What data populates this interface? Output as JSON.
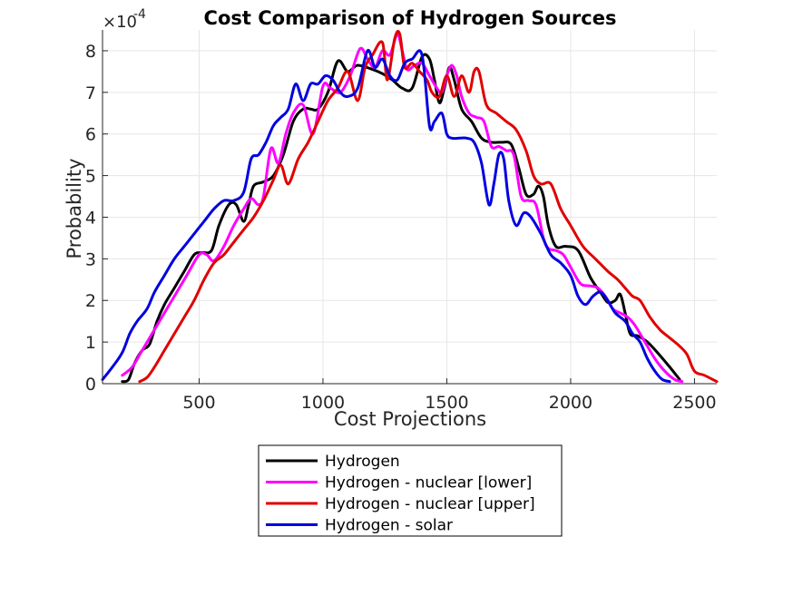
{
  "chart_data": {
    "type": "line",
    "title": "Cost Comparison of Hydrogen Sources",
    "xlabel": "Cost Projections",
    "ylabel": "Probability",
    "xlim": [
      110,
      2590
    ],
    "ylim": [
      0,
      8.5
    ],
    "y_scale_exponent": "-4",
    "y_scale_base": "×10",
    "xticks": [
      500,
      1000,
      1500,
      2000,
      2500
    ],
    "yticks": [
      0,
      1,
      2,
      3,
      4,
      5,
      6,
      7,
      8
    ],
    "grid": true,
    "legend_position": "below",
    "series": [
      {
        "name": "Hydrogen",
        "color": "#000000",
        "x": [
          190,
          215,
          240,
          270,
          300,
          330,
          360,
          400,
          440,
          480,
          510,
          550,
          580,
          620,
          650,
          680,
          700,
          720,
          760,
          800,
          840,
          880,
          920,
          950,
          980,
          1020,
          1060,
          1100,
          1140,
          1200,
          1240,
          1280,
          1320,
          1360,
          1400,
          1430,
          1450,
          1470,
          1490,
          1510,
          1530,
          1560,
          1600,
          1640,
          1680,
          1720,
          1760,
          1790,
          1820,
          1850,
          1870,
          1890,
          1910,
          1940,
          1980,
          2030,
          2080,
          2120,
          2150,
          2180,
          2200,
          2220,
          2240,
          2270,
          2310,
          2350,
          2400,
          2440
        ],
        "values": [
          0.05,
          0.1,
          0.5,
          0.8,
          0.95,
          1.5,
          1.9,
          2.3,
          2.7,
          3.1,
          3.15,
          3.2,
          3.8,
          4.3,
          4.3,
          3.9,
          4.3,
          4.75,
          4.85,
          5.0,
          5.5,
          6.3,
          6.6,
          6.6,
          6.6,
          7.0,
          7.75,
          7.5,
          7.65,
          7.55,
          7.45,
          7.3,
          7.1,
          7.1,
          7.85,
          7.8,
          7.3,
          6.75,
          7.1,
          7.6,
          7.3,
          6.6,
          6.3,
          5.9,
          5.8,
          5.8,
          5.75,
          5.2,
          4.55,
          4.55,
          4.75,
          4.5,
          3.8,
          3.3,
          3.3,
          3.2,
          2.55,
          2.2,
          1.95,
          2.0,
          2.15,
          1.7,
          1.2,
          1.15,
          1.0,
          0.75,
          0.4,
          0.1
        ]
      },
      {
        "name": "Hydrogen - nuclear [lower]",
        "color": "#ff00ff",
        "x": [
          190,
          230,
          270,
          310,
          350,
          400,
          450,
          500,
          530,
          560,
          600,
          640,
          680,
          710,
          740,
          760,
          790,
          820,
          850,
          880,
          920,
          960,
          1000,
          1030,
          1070,
          1110,
          1150,
          1180,
          1210,
          1240,
          1270,
          1300,
          1320,
          1340,
          1370,
          1400,
          1430,
          1460,
          1480,
          1500,
          1520,
          1540,
          1560,
          1590,
          1620,
          1650,
          1680,
          1710,
          1740,
          1770,
          1800,
          1830,
          1860,
          1890,
          1910,
          1940,
          1970,
          2000,
          2040,
          2080,
          2110,
          2140,
          2170,
          2200,
          2230,
          2260,
          2300,
          2340,
          2380,
          2420,
          2450
        ],
        "values": [
          0.2,
          0.4,
          0.8,
          1.2,
          1.6,
          2.1,
          2.6,
          3.1,
          3.1,
          2.95,
          3.3,
          3.8,
          4.2,
          4.45,
          4.3,
          4.5,
          5.65,
          5.3,
          6.0,
          6.5,
          6.7,
          6.0,
          7.15,
          7.1,
          7.0,
          7.4,
          8.05,
          7.8,
          7.6,
          8.0,
          7.9,
          8.4,
          8.0,
          7.55,
          7.65,
          7.7,
          7.4,
          7.1,
          7.0,
          7.4,
          7.65,
          7.4,
          6.9,
          6.5,
          6.4,
          6.3,
          5.7,
          5.7,
          5.6,
          5.5,
          4.5,
          4.4,
          4.3,
          3.5,
          3.25,
          3.2,
          3.1,
          2.8,
          2.4,
          2.35,
          2.3,
          2.1,
          1.8,
          1.7,
          1.6,
          1.4,
          1.0,
          0.6,
          0.3,
          0.1,
          0.05
        ]
      },
      {
        "name": "Hydrogen - nuclear [upper]",
        "color": "#e00000",
        "x": [
          260,
          290,
          320,
          360,
          400,
          440,
          480,
          520,
          560,
          600,
          640,
          680,
          720,
          760,
          800,
          830,
          860,
          900,
          940,
          980,
          1020,
          1060,
          1100,
          1140,
          1170,
          1200,
          1240,
          1260,
          1290,
          1310,
          1330,
          1360,
          1390,
          1420,
          1440,
          1470,
          1500,
          1530,
          1560,
          1590,
          1610,
          1630,
          1660,
          1700,
          1740,
          1780,
          1820,
          1850,
          1880,
          1920,
          1960,
          2000,
          2050,
          2100,
          2150,
          2190,
          2220,
          2250,
          2280,
          2320,
          2360,
          2400,
          2440,
          2470,
          2500,
          2540,
          2590
        ],
        "values": [
          0.05,
          0.15,
          0.4,
          0.8,
          1.2,
          1.6,
          2.0,
          2.5,
          2.9,
          3.1,
          3.4,
          3.7,
          4.0,
          4.4,
          4.9,
          5.25,
          4.8,
          5.4,
          5.8,
          6.3,
          6.8,
          7.1,
          7.5,
          6.8,
          7.6,
          7.9,
          8.2,
          7.3,
          8.3,
          8.4,
          7.6,
          7.7,
          7.5,
          7.3,
          7.0,
          6.9,
          7.4,
          6.9,
          7.4,
          7.0,
          7.5,
          7.5,
          6.7,
          6.5,
          6.3,
          6.1,
          5.6,
          5.0,
          4.8,
          4.8,
          4.2,
          3.8,
          3.3,
          3.0,
          2.7,
          2.5,
          2.3,
          2.1,
          2.0,
          1.6,
          1.3,
          1.1,
          0.9,
          0.7,
          0.3,
          0.2,
          0.05
        ]
      },
      {
        "name": "Hydrogen - solar",
        "color": "#0000e0",
        "x": [
          110,
          150,
          190,
          220,
          250,
          290,
          320,
          360,
          400,
          440,
          480,
          520,
          560,
          600,
          640,
          680,
          710,
          740,
          770,
          800,
          830,
          860,
          890,
          920,
          950,
          980,
          1010,
          1040,
          1070,
          1100,
          1140,
          1180,
          1210,
          1240,
          1270,
          1300,
          1330,
          1360,
          1400,
          1430,
          1450,
          1480,
          1500,
          1520,
          1550,
          1580,
          1610,
          1640,
          1670,
          1690,
          1710,
          1730,
          1750,
          1780,
          1810,
          1840,
          1880,
          1920,
          1960,
          2000,
          2030,
          2060,
          2090,
          2120,
          2150,
          2180,
          2220,
          2250,
          2280,
          2310,
          2340,
          2370,
          2400
        ],
        "values": [
          0.1,
          0.4,
          0.75,
          1.2,
          1.5,
          1.8,
          2.2,
          2.6,
          3.0,
          3.3,
          3.6,
          3.9,
          4.2,
          4.4,
          4.4,
          4.6,
          5.4,
          5.5,
          5.8,
          6.2,
          6.4,
          6.6,
          7.2,
          6.8,
          7.2,
          7.2,
          7.4,
          7.3,
          7.0,
          6.9,
          7.1,
          8.0,
          7.6,
          7.8,
          7.4,
          7.3,
          7.7,
          7.8,
          7.9,
          6.2,
          6.3,
          6.5,
          6.0,
          5.9,
          5.9,
          5.9,
          5.8,
          5.3,
          4.3,
          4.8,
          5.5,
          5.4,
          4.4,
          3.8,
          4.1,
          4.0,
          3.6,
          3.1,
          2.9,
          2.6,
          2.1,
          1.9,
          2.1,
          2.2,
          2.0,
          1.7,
          1.5,
          1.2,
          1.0,
          0.6,
          0.3,
          0.1,
          0.05
        ]
      }
    ]
  }
}
